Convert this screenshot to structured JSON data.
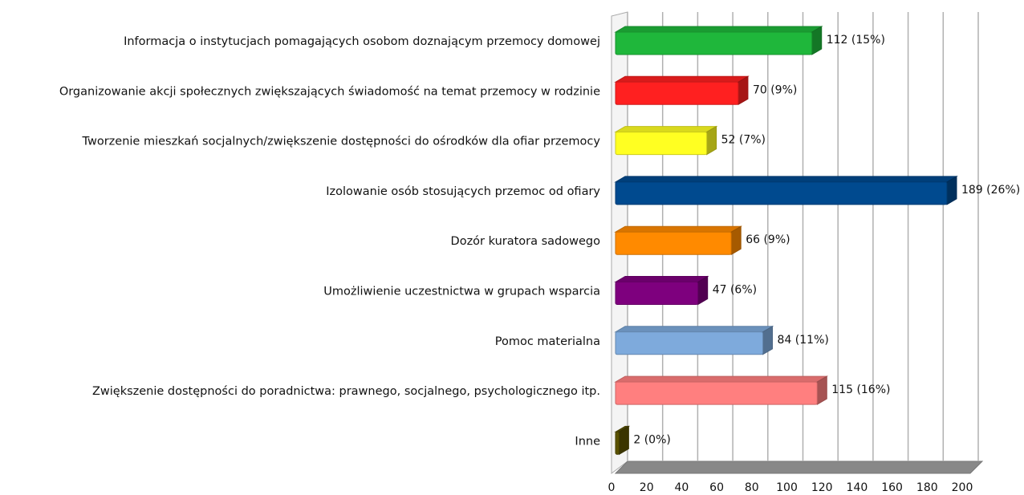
{
  "chart_data": {
    "type": "bar3d_horizontal",
    "categories": [
      "Informacja o instytucjach pomagających osobom doznającym przemocy domowej",
      "Organizowanie akcji społecznych zwiększających świadomość na temat przemocy w rodzinie",
      "Tworzenie mieszkań socjalnych/zwiększenie dostępności do ośrodków dla ofiar przemocy",
      "Izolowanie osób stosujących przemoc od ofiary",
      "Dozór kuratora sadowego",
      "Umożliwienie uczestnictwa w grupach wsparcia",
      "Pomoc materialna",
      "Zwiększenie dostępności do poradnictwa: prawnego, socjalnego, psychologicznego itp.",
      "Inne"
    ],
    "values": [
      112,
      70,
      52,
      189,
      66,
      47,
      84,
      115,
      2
    ],
    "value_labels": [
      "112 (15%)",
      "70 (9%)",
      "52 (7%)",
      "189 (26%)",
      "66 (9%)",
      "47 (6%)",
      "84 (11%)",
      "115 (16%)",
      "2 (0%)"
    ],
    "colors": [
      "#1fb73b",
      "#ff2020",
      "#ffff22",
      "#004a8f",
      "#ff8a00",
      "#7e007e",
      "#7eaadc",
      "#ff7f7f",
      "#5a5200"
    ],
    "xlim": [
      0,
      200
    ],
    "xticks": [
      0,
      20,
      40,
      60,
      80,
      100,
      120,
      140,
      160,
      180,
      200
    ],
    "grid": true
  }
}
